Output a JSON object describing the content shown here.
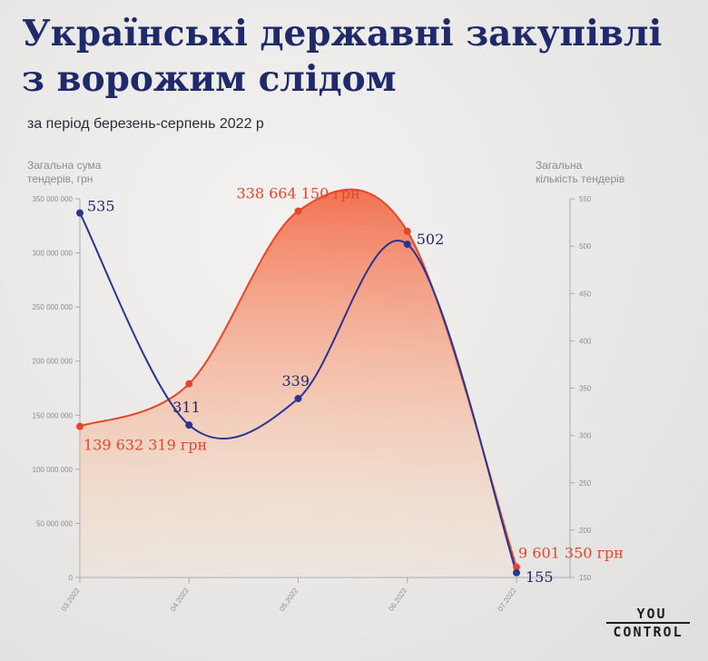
{
  "title_lines": [
    "Українські державні закупівлі",
    "з ворожим слідом"
  ],
  "subtitle": "за період березень-серпень 2022 р",
  "left_axis_label": [
    "Загальна сума",
    "тендерів, грн"
  ],
  "right_axis_label": [
    "Загальна",
    "кількість тендерів"
  ],
  "logo": {
    "line1": "YOU",
    "line2": "CONTROL"
  },
  "colors": {
    "title": "#1f2a6b",
    "amount_line": "#e8462a",
    "count_line": "#283593",
    "area_top": "#f26b4a",
    "area_bottom": "#fbd9b4"
  },
  "chart_data": {
    "type": "line",
    "categories": [
      "03.2022",
      "04.2022",
      "05.2022",
      "06.2022",
      "07.2022"
    ],
    "series": [
      {
        "axis": "left",
        "values": [
          139632319,
          179000000,
          338664150,
          320000000,
          9601350
        ],
        "labels": [
          "139 632 319 грн",
          "",
          "338 664 150 грн",
          "",
          "9 601 350 грн"
        ]
      },
      {
        "axis": "right",
        "values": [
          535,
          311,
          339,
          502,
          155
        ],
        "labels": [
          "535",
          "311",
          "339",
          "502",
          "155"
        ]
      }
    ],
    "left_axis": {
      "range": [
        0,
        350000000
      ],
      "ticks": [
        0,
        50000000,
        100000000,
        150000000,
        200000000,
        250000000,
        300000000,
        350000000
      ],
      "tick_labels": [
        "0",
        "50 000 000",
        "100 000 000",
        "150 000 000",
        "200 000 000",
        "250 000 000",
        "300 000 000",
        "350 000 000"
      ]
    },
    "right_axis": {
      "range": [
        150,
        550
      ],
      "ticks": [
        150,
        200,
        250,
        300,
        350,
        400,
        450,
        500,
        550
      ],
      "tick_labels": [
        "150",
        "200",
        "250",
        "300",
        "350",
        "400",
        "450",
        "500",
        "550"
      ]
    },
    "grid": false
  }
}
